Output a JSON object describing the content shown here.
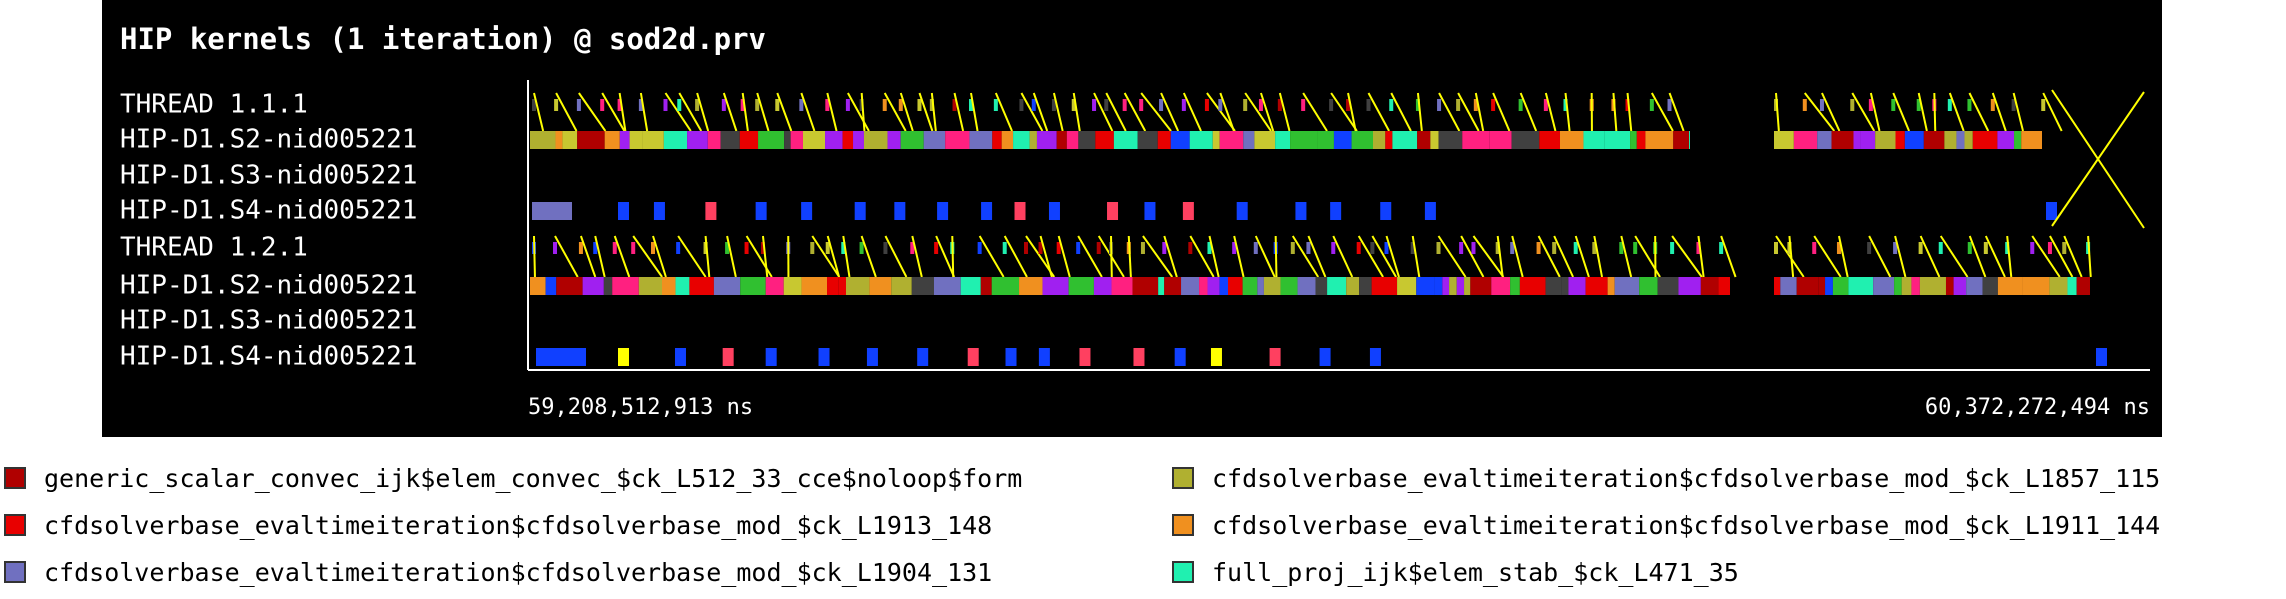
{
  "window": {
    "title": "HIP kernels (1 iteration) @ sod2d.prv",
    "rows": [
      "THREAD 1.1.1",
      "HIP-D1.S2-nid005221",
      "HIP-D1.S3-nid005221",
      "HIP-D1.S4-nid005221",
      "THREAD 1.2.1",
      "HIP-D1.S2-nid005221",
      "HIP-D1.S3-nid005221",
      "HIP-D1.S4-nid005221"
    ],
    "time_start": "59,208,512,913 ns",
    "time_end": "60,372,272,494 ns"
  },
  "legend": [
    {
      "label": "generic_scalar_convec_ijk$elem_convec_$ck_L512_33_cce$noloop$form",
      "color": "#b00000"
    },
    {
      "label": "cfdsolverbase_evaltimeiteration$cfdsolverbase_mod_$ck_L1857_115",
      "color": "#b0b030"
    },
    {
      "label": "cfdsolverbase_evaltimeiteration$cfdsolverbase_mod_$ck_L1913_148",
      "color": "#e80000"
    },
    {
      "label": "cfdsolverbase_evaltimeiteration$cfdsolverbase_mod_$ck_L1911_144",
      "color": "#f0901f"
    },
    {
      "label": "cfdsolverbase_evaltimeiteration$cfdsolverbase_mod_$ck_L1904_131",
      "color": "#7070c0"
    },
    {
      "label": "full_proj_ijk$elem_stab_$ck_L471_35",
      "color": "#20f0b0"
    }
  ]
}
